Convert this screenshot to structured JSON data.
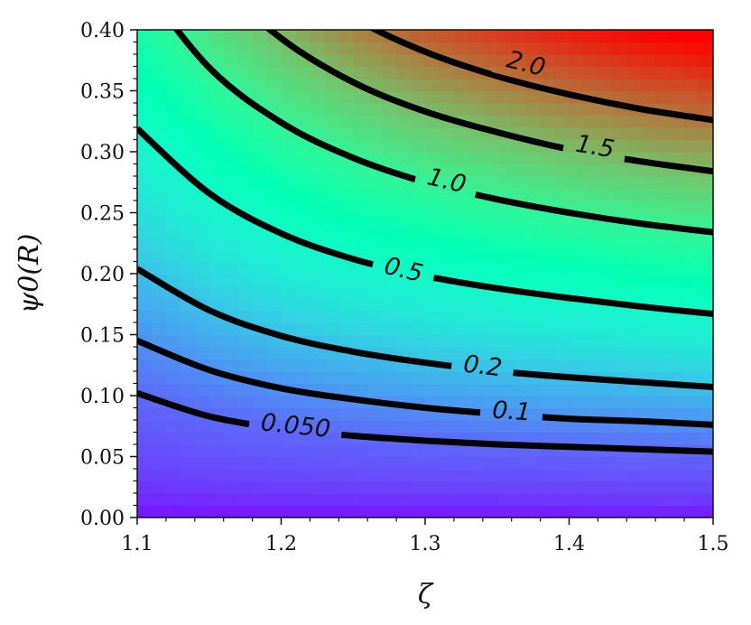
{
  "chart_data": {
    "type": "heatmap",
    "xlabel": "ζ",
    "ylabel": "ψ0(R)",
    "xlim": [
      1.1,
      1.5
    ],
    "ylim": [
      0.0,
      0.4
    ],
    "x_ticks": [
      "1.1",
      "1.2",
      "1.3",
      "1.4",
      "1.5"
    ],
    "y_ticks": [
      "0.00",
      "0.05",
      "0.10",
      "0.15",
      "0.20",
      "0.25",
      "0.30",
      "0.35",
      "0.40"
    ],
    "colormap": "rainbow",
    "color_range": [
      0.0,
      2.5
    ],
    "contours": [
      {
        "level": 0.05,
        "label": "0.050",
        "label_pos": {
          "x": 1.21,
          "y": 0.075
        },
        "points": [
          [
            1.1,
            0.102
          ],
          [
            1.15,
            0.083
          ],
          [
            1.2,
            0.073
          ],
          [
            1.25,
            0.067
          ],
          [
            1.3,
            0.063
          ],
          [
            1.35,
            0.06
          ],
          [
            1.4,
            0.058
          ],
          [
            1.45,
            0.056
          ],
          [
            1.5,
            0.054
          ]
        ]
      },
      {
        "level": 0.1,
        "label": "0.1",
        "label_pos": {
          "x": 1.36,
          "y": 0.087
        },
        "points": [
          [
            1.1,
            0.145
          ],
          [
            1.15,
            0.121
          ],
          [
            1.2,
            0.106
          ],
          [
            1.25,
            0.097
          ],
          [
            1.3,
            0.09
          ],
          [
            1.35,
            0.085
          ],
          [
            1.4,
            0.081
          ],
          [
            1.45,
            0.079
          ],
          [
            1.5,
            0.076
          ]
        ]
      },
      {
        "level": 0.2,
        "label": "0.2",
        "label_pos": {
          "x": 1.34,
          "y": 0.124
        },
        "points": [
          [
            1.1,
            0.204
          ],
          [
            1.15,
            0.17
          ],
          [
            1.2,
            0.149
          ],
          [
            1.25,
            0.136
          ],
          [
            1.3,
            0.127
          ],
          [
            1.35,
            0.12
          ],
          [
            1.4,
            0.115
          ],
          [
            1.45,
            0.111
          ],
          [
            1.5,
            0.107
          ]
        ]
      },
      {
        "level": 0.5,
        "label": "0.5",
        "label_pos": {
          "x": 1.285,
          "y": 0.203
        },
        "points": [
          [
            1.1,
            0.319
          ],
          [
            1.15,
            0.266
          ],
          [
            1.2,
            0.233
          ],
          [
            1.25,
            0.212
          ],
          [
            1.3,
            0.198
          ],
          [
            1.35,
            0.188
          ],
          [
            1.4,
            0.18
          ],
          [
            1.45,
            0.173
          ],
          [
            1.5,
            0.167
          ]
        ]
      },
      {
        "level": 1.0,
        "label": "1.0",
        "label_pos": {
          "x": 1.315,
          "y": 0.276
        },
        "points": [
          [
            1.1,
            0.443
          ],
          [
            1.15,
            0.369
          ],
          [
            1.2,
            0.324
          ],
          [
            1.25,
            0.295
          ],
          [
            1.3,
            0.275
          ],
          [
            1.35,
            0.261
          ],
          [
            1.4,
            0.25
          ],
          [
            1.45,
            0.241
          ],
          [
            1.5,
            0.234
          ]
        ]
      },
      {
        "level": 1.5,
        "label": "1.5",
        "label_pos": {
          "x": 1.418,
          "y": 0.304
        },
        "points": [
          [
            1.1,
            0.536
          ],
          [
            1.15,
            0.447
          ],
          [
            1.2,
            0.393
          ],
          [
            1.25,
            0.357
          ],
          [
            1.3,
            0.333
          ],
          [
            1.35,
            0.316
          ],
          [
            1.4,
            0.302
          ],
          [
            1.45,
            0.292
          ],
          [
            1.5,
            0.284
          ]
        ]
      },
      {
        "level": 2.0,
        "label": "2.0",
        "label_pos": {
          "x": 1.37,
          "y": 0.372
        },
        "points": [
          [
            1.1,
            0.616
          ],
          [
            1.15,
            0.513
          ],
          [
            1.2,
            0.451
          ],
          [
            1.25,
            0.41
          ],
          [
            1.3,
            0.382
          ],
          [
            1.35,
            0.362
          ],
          [
            1.4,
            0.347
          ],
          [
            1.45,
            0.335
          ],
          [
            1.5,
            0.326
          ]
        ]
      }
    ]
  }
}
